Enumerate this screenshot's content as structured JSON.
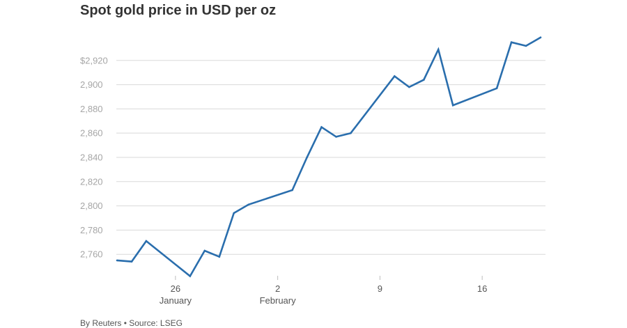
{
  "chart_data": {
    "type": "line",
    "title": "Spot gold price in USD per oz",
    "xlabel": "",
    "ylabel": "",
    "x": [
      "2025-01-22",
      "2025-01-23",
      "2025-01-24",
      "2025-01-27",
      "2025-01-28",
      "2025-01-29",
      "2025-01-30",
      "2025-01-31",
      "2025-02-03",
      "2025-02-04",
      "2025-02-05",
      "2025-02-06",
      "2025-02-07",
      "2025-02-10",
      "2025-02-11",
      "2025-02-12",
      "2025-02-13",
      "2025-02-14",
      "2025-02-17",
      "2025-02-18",
      "2025-02-19",
      "2025-02-20"
    ],
    "series": [
      {
        "values": [
          2755,
          2754,
          2771,
          2742,
          2763,
          2758,
          2794,
          2801,
          2813,
          2840,
          2865,
          2857,
          2860,
          2907,
          2898,
          2904,
          2929,
          2883,
          2897,
          2935,
          2932,
          2939
        ]
      }
    ],
    "x_range": [
      "2025-01-22",
      "2025-02-20"
    ],
    "ylim": [
      2740,
      2944
    ],
    "y_ticks": [
      2760,
      2780,
      2800,
      2820,
      2840,
      2860,
      2880,
      2900,
      2920
    ],
    "y_tick_labels": [
      "2,760",
      "2,780",
      "2,800",
      "2,820",
      "2,840",
      "2,860",
      "2,880",
      "2,900",
      "$2,920"
    ],
    "x_ticks": [
      {
        "date": "2025-01-26",
        "label": "26",
        "sublabel": "January"
      },
      {
        "date": "2025-02-02",
        "label": "2",
        "sublabel": "February"
      },
      {
        "date": "2025-02-09",
        "label": "9",
        "sublabel": ""
      },
      {
        "date": "2025-02-16",
        "label": "16",
        "sublabel": ""
      }
    ],
    "grid": true,
    "legend": "none",
    "line_color": "#2a6ead"
  },
  "footer": {
    "source": "By Reuters • Source: LSEG"
  }
}
